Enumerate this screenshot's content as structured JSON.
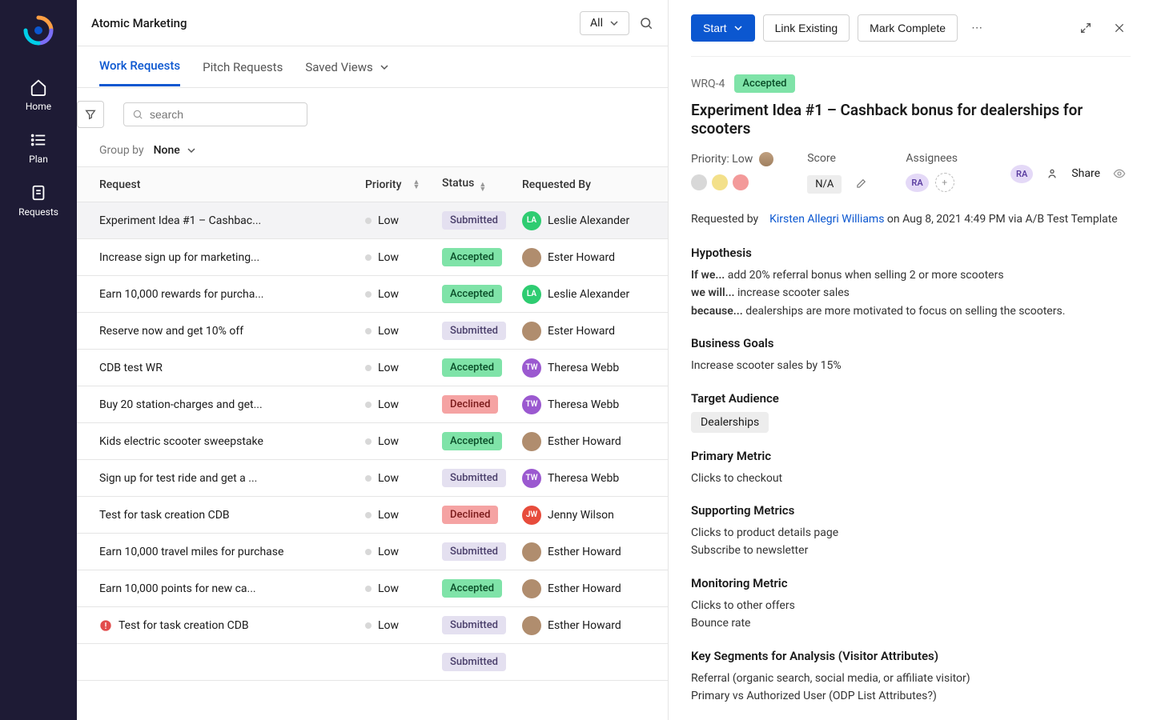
{
  "sidebar": {
    "items": [
      {
        "label": "Home"
      },
      {
        "label": "Plan"
      },
      {
        "label": "Requests"
      }
    ]
  },
  "page": {
    "title": "Atomic Marketing",
    "all_label": "All"
  },
  "tabs": {
    "work_requests": "Work Requests",
    "pitch_requests": "Pitch Requests",
    "saved_views": "Saved Views"
  },
  "search": {
    "placeholder": "search"
  },
  "group": {
    "label": "Group by",
    "value": "None"
  },
  "table": {
    "headers": {
      "request": "Request",
      "priority": "Priority",
      "status": "Status",
      "requested_by": "Requested By"
    },
    "rows": [
      {
        "title": "Experiment Idea #1 – Cashbac...",
        "priority": "Low",
        "status": "Submitted",
        "status_class": "submitted",
        "requester": "Leslie Alexander",
        "avatar_bg": "#2ecc71",
        "avatar_txt": "LA",
        "alert": false
      },
      {
        "title": "Increase sign up for marketing...",
        "priority": "Low",
        "status": "Accepted",
        "status_class": "accepted",
        "requester": "Ester Howard",
        "avatar_bg": "#b08d6e",
        "avatar_txt": "",
        "alert": false
      },
      {
        "title": "Earn 10,000 rewards for purcha...",
        "priority": "Low",
        "status": "Accepted",
        "status_class": "accepted",
        "requester": "Leslie Alexander",
        "avatar_bg": "#2ecc71",
        "avatar_txt": "LA",
        "alert": false
      },
      {
        "title": "Reserve now and get 10% off",
        "priority": "Low",
        "status": "Submitted",
        "status_class": "submitted",
        "requester": "Ester Howard",
        "avatar_bg": "#b08d6e",
        "avatar_txt": "",
        "alert": false
      },
      {
        "title": "CDB test WR",
        "priority": "Low",
        "status": "Accepted",
        "status_class": "accepted",
        "requester": "Theresa Webb",
        "avatar_bg": "#9b59d0",
        "avatar_txt": "TW",
        "alert": false
      },
      {
        "title": "Buy 20 station-charges and get...",
        "priority": "Low",
        "status": "Declined",
        "status_class": "declined",
        "requester": "Theresa Webb",
        "avatar_bg": "#9b59d0",
        "avatar_txt": "TW",
        "alert": false
      },
      {
        "title": "Kids electric scooter sweepstake",
        "priority": "Low",
        "status": "Accepted",
        "status_class": "accepted",
        "requester": "Esther Howard",
        "avatar_bg": "#b08d6e",
        "avatar_txt": "",
        "alert": false
      },
      {
        "title": "Sign up for test ride and get a ...",
        "priority": "Low",
        "status": "Submitted",
        "status_class": "submitted",
        "requester": "Theresa Webb",
        "avatar_bg": "#9b59d0",
        "avatar_txt": "TW",
        "alert": false
      },
      {
        "title": "Test for task creation CDB",
        "priority": "Low",
        "status": "Declined",
        "status_class": "declined",
        "requester": "Jenny Wilson",
        "avatar_bg": "#e74c3c",
        "avatar_txt": "JW",
        "alert": false
      },
      {
        "title": "Earn 10,000 travel miles for purchase",
        "priority": "Low",
        "status": "Submitted",
        "status_class": "submitted",
        "requester": "Esther Howard",
        "avatar_bg": "#b08d6e",
        "avatar_txt": "",
        "alert": false
      },
      {
        "title": "Earn 10,000 points for new ca...",
        "priority": "Low",
        "status": "Accepted",
        "status_class": "accepted",
        "requester": "Esther Howard",
        "avatar_bg": "#b08d6e",
        "avatar_txt": "",
        "alert": false
      },
      {
        "title": "Test for task creation CDB",
        "priority": "Low",
        "status": "Submitted",
        "status_class": "submitted",
        "requester": "Esther Howard",
        "avatar_bg": "#b08d6e",
        "avatar_txt": "",
        "alert": true
      },
      {
        "title": "",
        "priority": "",
        "status": "Submitted",
        "status_class": "submitted",
        "requester": "",
        "avatar_bg": "",
        "avatar_txt": "",
        "alert": false
      }
    ]
  },
  "detail": {
    "buttons": {
      "start": "Start",
      "link_existing": "Link Existing",
      "mark_complete": "Mark Complete"
    },
    "id": "WRQ-4",
    "status": "Accepted",
    "title": "Experiment Idea #1 – Cashback bonus for dealerships for scooters",
    "priority_label": "Priority: Low",
    "priority_colors": [
      "#d8d8d8",
      "#f3e08a",
      "#f39a9a"
    ],
    "score_label": "Score",
    "score_value": "N/A",
    "assignees_label": "Assignees",
    "assignee_initials": "RA",
    "share_label": "Share",
    "requested_by_label": "Requested by",
    "requested_by_name": "Kirsten Allegri Williams",
    "requested_by_meta": " on Aug 8, 2021 4:49 PM via A/B Test Template",
    "sections": {
      "hypothesis": {
        "heading": "Hypothesis",
        "if_label": "If we...",
        "if_text": " add 20% referral bonus when selling 2 or more scooters",
        "will_label": "we will...",
        "will_text": " increase scooter sales",
        "because_label": "because...",
        "because_text": " dealerships are more motivated to focus on selling the scooters."
      },
      "business_goals": {
        "heading": "Business Goals",
        "text": "Increase scooter sales by 15%"
      },
      "target_audience": {
        "heading": "Target Audience",
        "tag": "Dealerships"
      },
      "primary_metric": {
        "heading": "Primary Metric",
        "text": "Clicks to checkout"
      },
      "supporting_metrics": {
        "heading": "Supporting Metrics",
        "line1": "Clicks to product details page",
        "line2": "Subscribe to newsletter"
      },
      "monitoring_metric": {
        "heading": "Monitoring Metric",
        "line1": "Clicks to other offers",
        "line2": "Bounce rate"
      },
      "key_segments": {
        "heading": "Key Segments for Analysis (Visitor Attributes)",
        "line1": "Referral (organic search, social media, or affiliate visitor)",
        "line2": "Primary vs Authorized User (ODP List Attributes?)"
      }
    }
  }
}
